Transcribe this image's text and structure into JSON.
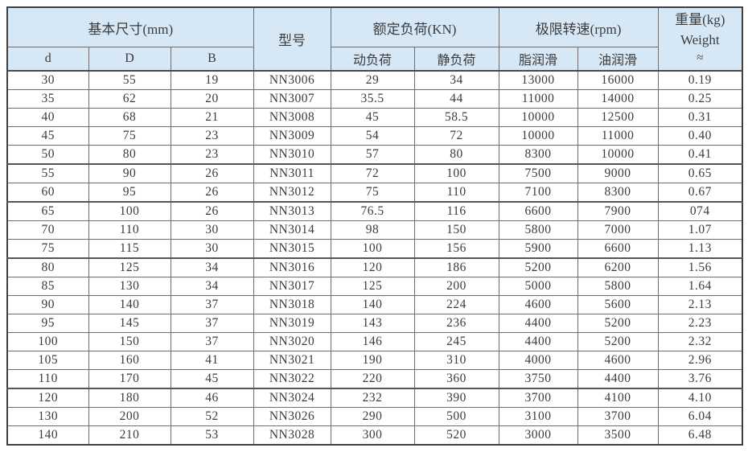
{
  "table": {
    "header": {
      "basic_dims": "基本尺寸(mm)",
      "model": "型号",
      "rated_load": "额定负荷(KN)",
      "limit_speed": "极限转速(rpm)",
      "weight_line1": "重量(kg)",
      "weight_line2": "Weight",
      "weight_line3": "≈",
      "sub": [
        "d",
        "D",
        "B",
        "动负荷",
        "静负荷",
        "脂润滑",
        "油润滑"
      ]
    },
    "rows": [
      [
        "30",
        "55",
        "19",
        "NN3006",
        "29",
        "34",
        "13000",
        "16000",
        "0.19"
      ],
      [
        "35",
        "62",
        "20",
        "NN3007",
        "35.5",
        "44",
        "11000",
        "14000",
        "0.25"
      ],
      [
        "40",
        "68",
        "21",
        "NN3008",
        "45",
        "58.5",
        "10000",
        "12500",
        "0.31"
      ],
      [
        "45",
        "75",
        "23",
        "NN3009",
        "54",
        "72",
        "10000",
        "11000",
        "0.40"
      ],
      [
        "50",
        "80",
        "23",
        "NN3010",
        "57",
        "80",
        "8300",
        "10000",
        "0.41"
      ],
      [
        "55",
        "90",
        "26",
        "NN3011",
        "72",
        "100",
        "7500",
        "9000",
        "0.65"
      ],
      [
        "60",
        "95",
        "26",
        "NN3012",
        "75",
        "110",
        "7100",
        "8300",
        "0.67"
      ],
      [
        "65",
        "100",
        "26",
        "NN3013",
        "76.5",
        "116",
        "6600",
        "7900",
        "074"
      ],
      [
        "70",
        "110",
        "30",
        "NN3014",
        "98",
        "150",
        "5800",
        "7000",
        "1.07"
      ],
      [
        "75",
        "115",
        "30",
        "NN3015",
        "100",
        "156",
        "5900",
        "6600",
        "1.13"
      ],
      [
        "80",
        "125",
        "34",
        "NN3016",
        "120",
        "186",
        "5200",
        "6200",
        "1.56"
      ],
      [
        "85",
        "130",
        "34",
        "NN3017",
        "125",
        "200",
        "5000",
        "5800",
        "1.64"
      ],
      [
        "90",
        "140",
        "37",
        "NN3018",
        "140",
        "224",
        "4600",
        "5600",
        "2.13"
      ],
      [
        "95",
        "145",
        "37",
        "NN3019",
        "143",
        "236",
        "4400",
        "5200",
        "2.23"
      ],
      [
        "100",
        "150",
        "37",
        "NN3020",
        "146",
        "245",
        "4400",
        "5200",
        "2.32"
      ],
      [
        "105",
        "160",
        "41",
        "NN3021",
        "190",
        "310",
        "4000",
        "4600",
        "2.96"
      ],
      [
        "110",
        "170",
        "45",
        "NN3022",
        "220",
        "360",
        "3750",
        "4400",
        "3.76"
      ],
      [
        "120",
        "180",
        "46",
        "NN3024",
        "232",
        "390",
        "3700",
        "4100",
        "4.10"
      ],
      [
        "130",
        "200",
        "52",
        "NN3026",
        "290",
        "500",
        "3100",
        "3700",
        "6.04"
      ],
      [
        "140",
        "210",
        "53",
        "NN3028",
        "300",
        "520",
        "3000",
        "3500",
        "6.48"
      ]
    ],
    "thick_border_after_rows": [
      5,
      7,
      10,
      17
    ],
    "colors": {
      "header_bg": "#d6e8f6",
      "inner_border": "#6e6e6e",
      "outer_border": "#3f3f3f",
      "text": "#3b3b3b"
    }
  }
}
